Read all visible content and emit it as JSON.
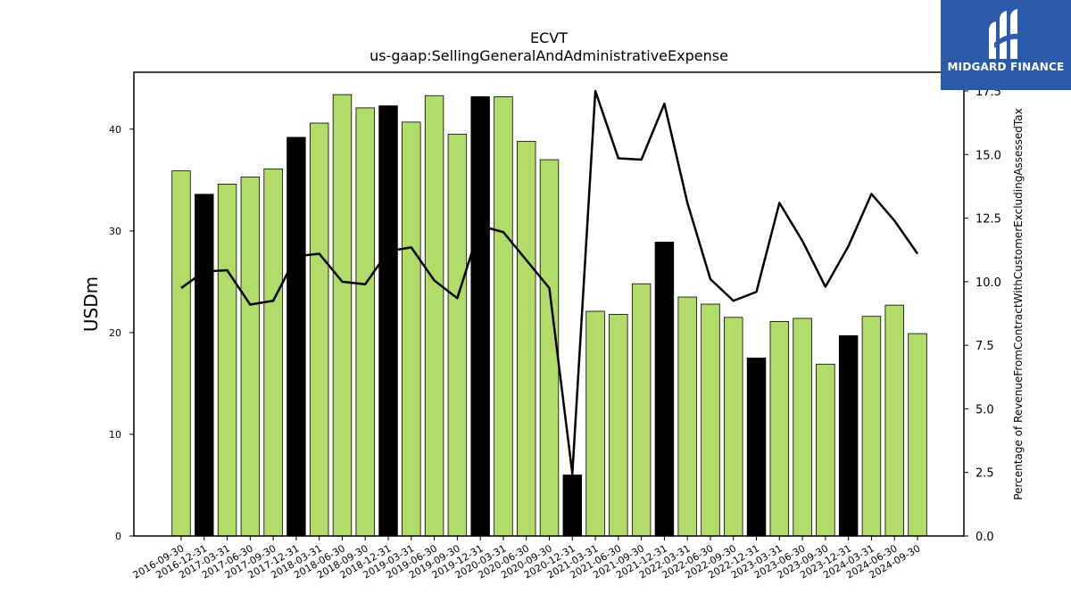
{
  "brand": {
    "name": "MIDGARD FINANCE",
    "logo_icon": "midgard-logo-icon",
    "bg_color": "#2a5aa9"
  },
  "colors": {
    "bar_regular": "#b2dc6a",
    "bar_highlight": "#000000",
    "line": "#000000"
  },
  "chart_data": {
    "type": "bar",
    "title": "ECVT",
    "subtitle": "us-gaap:SellingGeneralAndAdministrativeExpense",
    "ylabel": "USDm",
    "y2label": "Percentage of RevenueFromContractWithCustomerExcludingAssessedTax",
    "ylim": [
      0,
      45.6
    ],
    "y2lim": [
      0,
      17.5
    ],
    "yticks": [
      0,
      10,
      20,
      30,
      40
    ],
    "y2ticks": [
      "0.0",
      "2.5",
      "5.0",
      "7.5",
      "10.0",
      "12.5",
      "15.0",
      "17.5"
    ],
    "categories": [
      "2016-09-30",
      "2016-12-31",
      "2017-03-31",
      "2017-06-30",
      "2017-09-30",
      "2017-12-31",
      "2018-03-31",
      "2018-06-30",
      "2018-09-30",
      "2018-12-31",
      "2019-03-31",
      "2019-06-30",
      "2019-09-30",
      "2019-12-31",
      "2020-03-31",
      "2020-06-30",
      "2020-09-30",
      "2020-12-31",
      "2021-03-31",
      "2021-06-30",
      "2021-09-30",
      "2021-12-31",
      "2022-03-31",
      "2022-06-30",
      "2022-09-30",
      "2022-12-31",
      "2023-03-31",
      "2023-06-30",
      "2023-09-30",
      "2023-12-31",
      "2024-03-31",
      "2024-06-30",
      "2024-09-30"
    ],
    "series": [
      {
        "type": "bar",
        "values": [
          35.9,
          33.6,
          34.6,
          35.3,
          36.1,
          39.2,
          40.6,
          43.4,
          42.1,
          42.3,
          40.7,
          43.3,
          39.5,
          43.2,
          43.2,
          38.8,
          37.0,
          6.0,
          22.1,
          21.8,
          24.8,
          28.9,
          23.5,
          22.8,
          21.5,
          17.5,
          21.1,
          21.4,
          16.9,
          19.7,
          21.6,
          22.7,
          19.9
        ]
      },
      {
        "type": "line",
        "axis": "right",
        "values": [
          9.75,
          10.4,
          10.45,
          9.1,
          9.25,
          11.0,
          11.1,
          10.0,
          9.9,
          11.2,
          11.35,
          10.05,
          9.35,
          12.2,
          11.95,
          10.85,
          9.75,
          2.45,
          17.5,
          14.85,
          14.8,
          17.0,
          13.1,
          10.1,
          9.25,
          9.6,
          13.1,
          11.6,
          9.8,
          11.4,
          13.45,
          12.4,
          11.1
        ]
      }
    ],
    "highlight_indices": [
      1,
      5,
      9,
      13,
      17,
      21,
      25,
      29
    ],
    "grid": false,
    "legend": "none"
  }
}
